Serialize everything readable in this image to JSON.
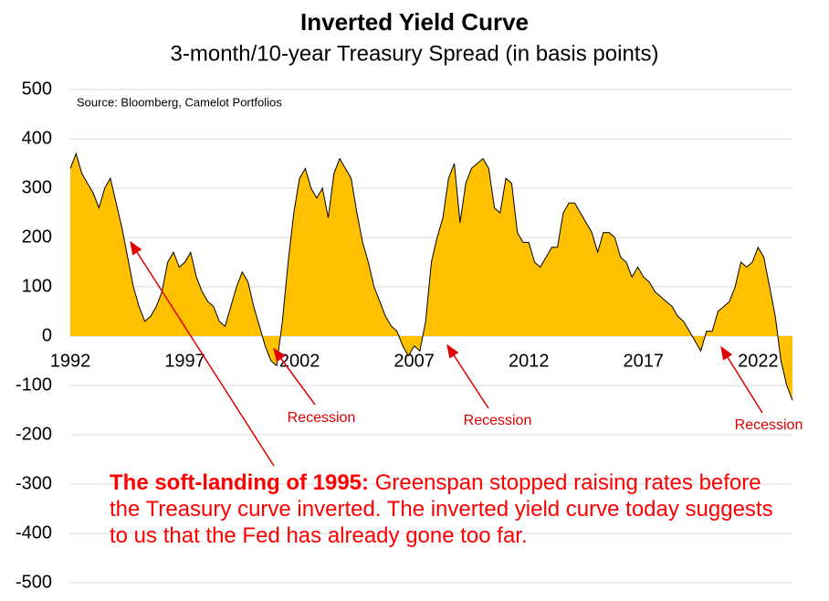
{
  "chart_data": {
    "type": "area",
    "title": "Inverted Yield Curve",
    "subtitle": "3-month/10-year Treasury Spread (in basis points)",
    "source": "Source: Bloomberg, Camelot Portfolios",
    "annotations": [
      "Recession",
      "Recession",
      "Recession"
    ],
    "note": {
      "lead": "The soft-landing of 1995:",
      "text": "Greenspan stopped raising rates before the Treasury curve inverted. The inverted yield curve today suggests to us that the Fed has already gone too far."
    },
    "x": [
      1992,
      1992.25,
      1992.5,
      1992.75,
      1993,
      1993.25,
      1993.5,
      1993.75,
      1994,
      1994.25,
      1994.5,
      1994.75,
      1995,
      1995.25,
      1995.5,
      1995.75,
      1996,
      1996.25,
      1996.5,
      1996.75,
      1997,
      1997.25,
      1997.5,
      1997.75,
      1998,
      1998.25,
      1998.5,
      1998.75,
      1999,
      1999.25,
      1999.5,
      1999.75,
      2000,
      2000.25,
      2000.5,
      2000.75,
      2001,
      2001.25,
      2001.5,
      2001.75,
      2002,
      2002.25,
      2002.5,
      2002.75,
      2003,
      2003.25,
      2003.5,
      2003.75,
      2004,
      2004.25,
      2004.5,
      2004.75,
      2005,
      2005.25,
      2005.5,
      2005.75,
      2006,
      2006.25,
      2006.5,
      2006.75,
      2007,
      2007.25,
      2007.5,
      2007.75,
      2008,
      2008.25,
      2008.5,
      2008.75,
      2009,
      2009.25,
      2009.5,
      2009.75,
      2010,
      2010.25,
      2010.5,
      2010.75,
      2011,
      2011.25,
      2011.5,
      2011.75,
      2012,
      2012.25,
      2012.5,
      2012.75,
      2013,
      2013.25,
      2013.5,
      2013.75,
      2014,
      2014.25,
      2014.5,
      2014.75,
      2015,
      2015.25,
      2015.5,
      2015.75,
      2016,
      2016.25,
      2016.5,
      2016.75,
      2017,
      2017.25,
      2017.5,
      2017.75,
      2018,
      2018.25,
      2018.5,
      2018.75,
      2019,
      2019.25,
      2019.5,
      2019.75,
      2020,
      2020.25,
      2020.5,
      2020.75,
      2021,
      2021.25,
      2021.5,
      2021.75,
      2022,
      2022.25,
      2022.5,
      2022.75,
      2023,
      2023.25,
      2023.5
    ],
    "series": [
      {
        "name": "3-month/10-year spread",
        "color": "#ffc000",
        "line_color": "#000000",
        "values": [
          340,
          370,
          330,
          310,
          290,
          260,
          300,
          320,
          270,
          220,
          160,
          100,
          60,
          30,
          40,
          60,
          90,
          150,
          170,
          140,
          150,
          170,
          120,
          90,
          70,
          60,
          30,
          20,
          60,
          100,
          130,
          110,
          60,
          20,
          -20,
          -50,
          -60,
          30,
          150,
          250,
          320,
          340,
          300,
          280,
          300,
          240,
          330,
          360,
          340,
          320,
          250,
          190,
          150,
          100,
          70,
          40,
          20,
          10,
          -20,
          -40,
          -20,
          -30,
          30,
          150,
          200,
          240,
          320,
          350,
          230,
          310,
          340,
          350,
          360,
          340,
          260,
          250,
          320,
          310,
          210,
          190,
          190,
          150,
          140,
          160,
          180,
          180,
          250,
          270,
          270,
          250,
          230,
          210,
          170,
          210,
          210,
          200,
          160,
          150,
          120,
          140,
          120,
          110,
          90,
          80,
          70,
          60,
          40,
          30,
          10,
          -10,
          -30,
          10,
          10,
          50,
          60,
          70,
          100,
          150,
          140,
          150,
          180,
          160,
          100,
          40,
          -50,
          -100,
          -130
        ]
      }
    ],
    "xlim": [
      1992,
      2023.5
    ],
    "xticks": [
      1992,
      1997,
      2002,
      2007,
      2012,
      2017,
      2022
    ],
    "ylim": [
      -500,
      500
    ],
    "yticks": [
      500,
      400,
      300,
      200,
      100,
      0,
      -100,
      -200,
      -300,
      -400,
      -500
    ],
    "grid": true
  }
}
